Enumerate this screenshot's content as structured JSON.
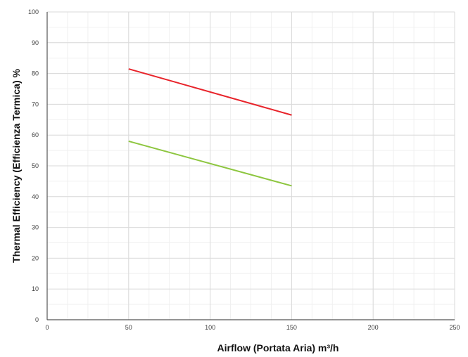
{
  "chart_data": {
    "type": "line",
    "title": "",
    "xlabel": "Airflow (Portata Aria) m³/h",
    "ylabel": "Thermal Efficiency (Efficienza Termica) %",
    "xlim": [
      0,
      250
    ],
    "ylim": [
      0,
      100
    ],
    "x_ticks": [
      "0",
      "50",
      "100",
      "150",
      "200",
      "250"
    ],
    "y_ticks": [
      "0",
      "10",
      "20",
      "30",
      "40",
      "50",
      "60",
      "70",
      "80",
      "90",
      "100"
    ],
    "grid": true,
    "legend": false,
    "series": [
      {
        "color": "#e8232a",
        "x": [
          50,
          150
        ],
        "y": [
          81.5,
          66.5
        ]
      },
      {
        "color": "#8dc63f",
        "x": [
          50,
          150
        ],
        "y": [
          58,
          43.5
        ]
      }
    ]
  }
}
